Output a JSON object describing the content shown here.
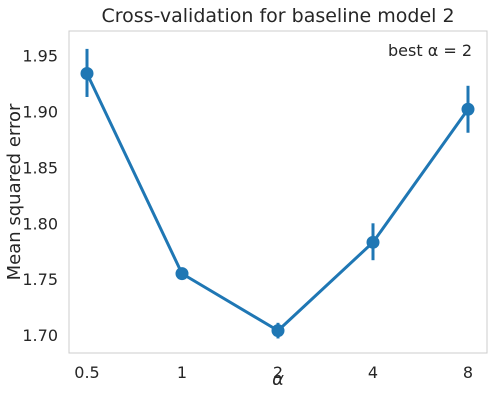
{
  "chart_data": {
    "type": "line",
    "title": "Cross-validation for baseline model 2",
    "xlabel": "α",
    "ylabel": "Mean squared error",
    "annotation": "best α = 2",
    "legend": "none",
    "grid": false,
    "line_color": "#1f77b4",
    "categories": [
      "0.5",
      "1",
      "2",
      "4",
      "8"
    ],
    "series": [
      {
        "values": [
          1.934,
          1.755,
          1.704,
          1.783,
          1.902
        ],
        "error_low": [
          1.913,
          1.751,
          1.697,
          1.767,
          1.881
        ],
        "error_high": [
          1.956,
          1.76,
          1.711,
          1.8,
          1.923
        ]
      }
    ],
    "ylim": [
      1.684,
      1.972
    ],
    "yticks": [
      1.7,
      1.75,
      1.8,
      1.85,
      1.9,
      1.95
    ],
    "ytick_labels": [
      "1.70",
      "1.75",
      "1.80",
      "1.85",
      "1.90",
      "1.95"
    ]
  }
}
